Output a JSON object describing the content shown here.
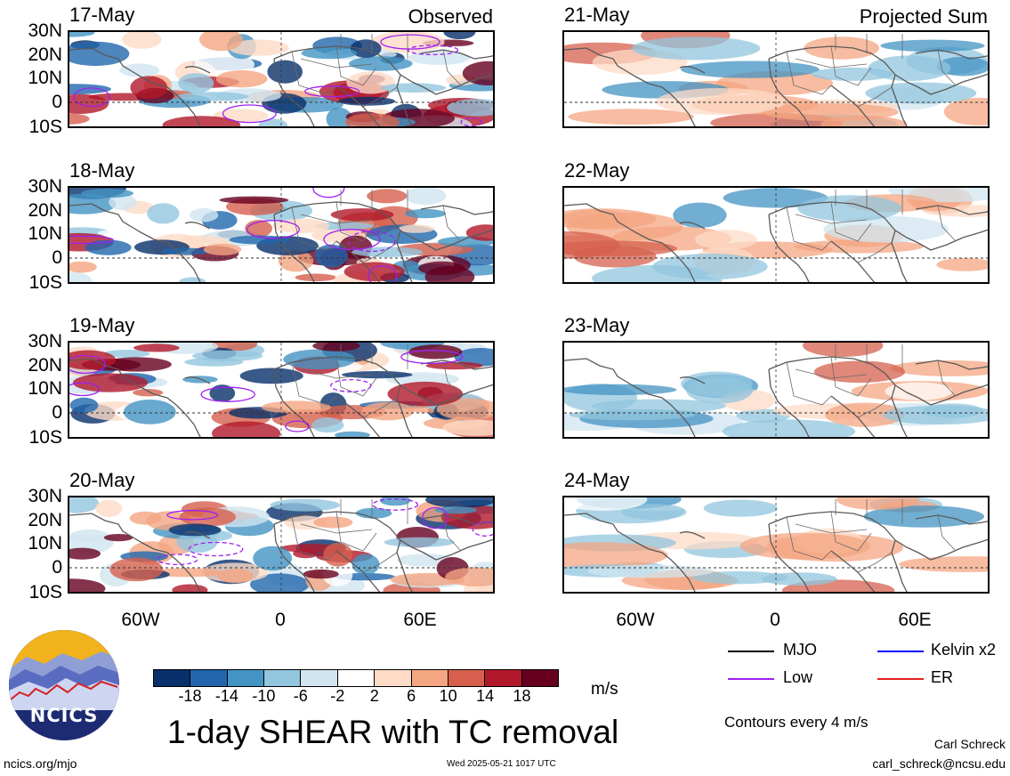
{
  "panels": [
    {
      "date": "17-May",
      "tag": "Observed",
      "kind": "obs"
    },
    {
      "date": "18-May",
      "tag": "",
      "kind": "obs"
    },
    {
      "date": "19-May",
      "tag": "",
      "kind": "obs"
    },
    {
      "date": "20-May",
      "tag": "",
      "kind": "obs"
    },
    {
      "date": "21-May",
      "tag": "Projected Sum",
      "kind": "proj"
    },
    {
      "date": "22-May",
      "tag": "",
      "kind": "proj"
    },
    {
      "date": "23-May",
      "tag": "",
      "kind": "proj"
    },
    {
      "date": "24-May",
      "tag": "",
      "kind": "proj"
    }
  ],
  "lat_labels": [
    "30N",
    "20N",
    "10N",
    "0",
    "10S"
  ],
  "lon_labels": [
    "60W",
    "0",
    "60E"
  ],
  "colorbar": {
    "labels": [
      "-18",
      "-14",
      "-10",
      "-6",
      "-2",
      "2",
      "6",
      "10",
      "14",
      "18"
    ],
    "colors": [
      "#08306b",
      "#2166ac",
      "#4393c3",
      "#92c5de",
      "#d1e5f0",
      "#ffffff",
      "#fddbc7",
      "#f4a582",
      "#d6604d",
      "#b2182b",
      "#67001f"
    ],
    "units": "m/s"
  },
  "title": "1-day SHEAR with TC removal",
  "legend": [
    {
      "label": "MJO",
      "color": "#000000"
    },
    {
      "label": "Kelvin x2",
      "color": "#0000ff"
    },
    {
      "label": "Low",
      "color": "#a020f0"
    },
    {
      "label": "ER",
      "color": "#e02020"
    }
  ],
  "contour_note": "Contours every 4 m/s",
  "footer": {
    "website": "ncics.org/mjo",
    "timestamp": "Wed 2025-05-21 1017 UTC",
    "author": "Carl Schreck",
    "email": "carl_schreck@ncsu.edu"
  },
  "logo_text": "NCICS"
}
